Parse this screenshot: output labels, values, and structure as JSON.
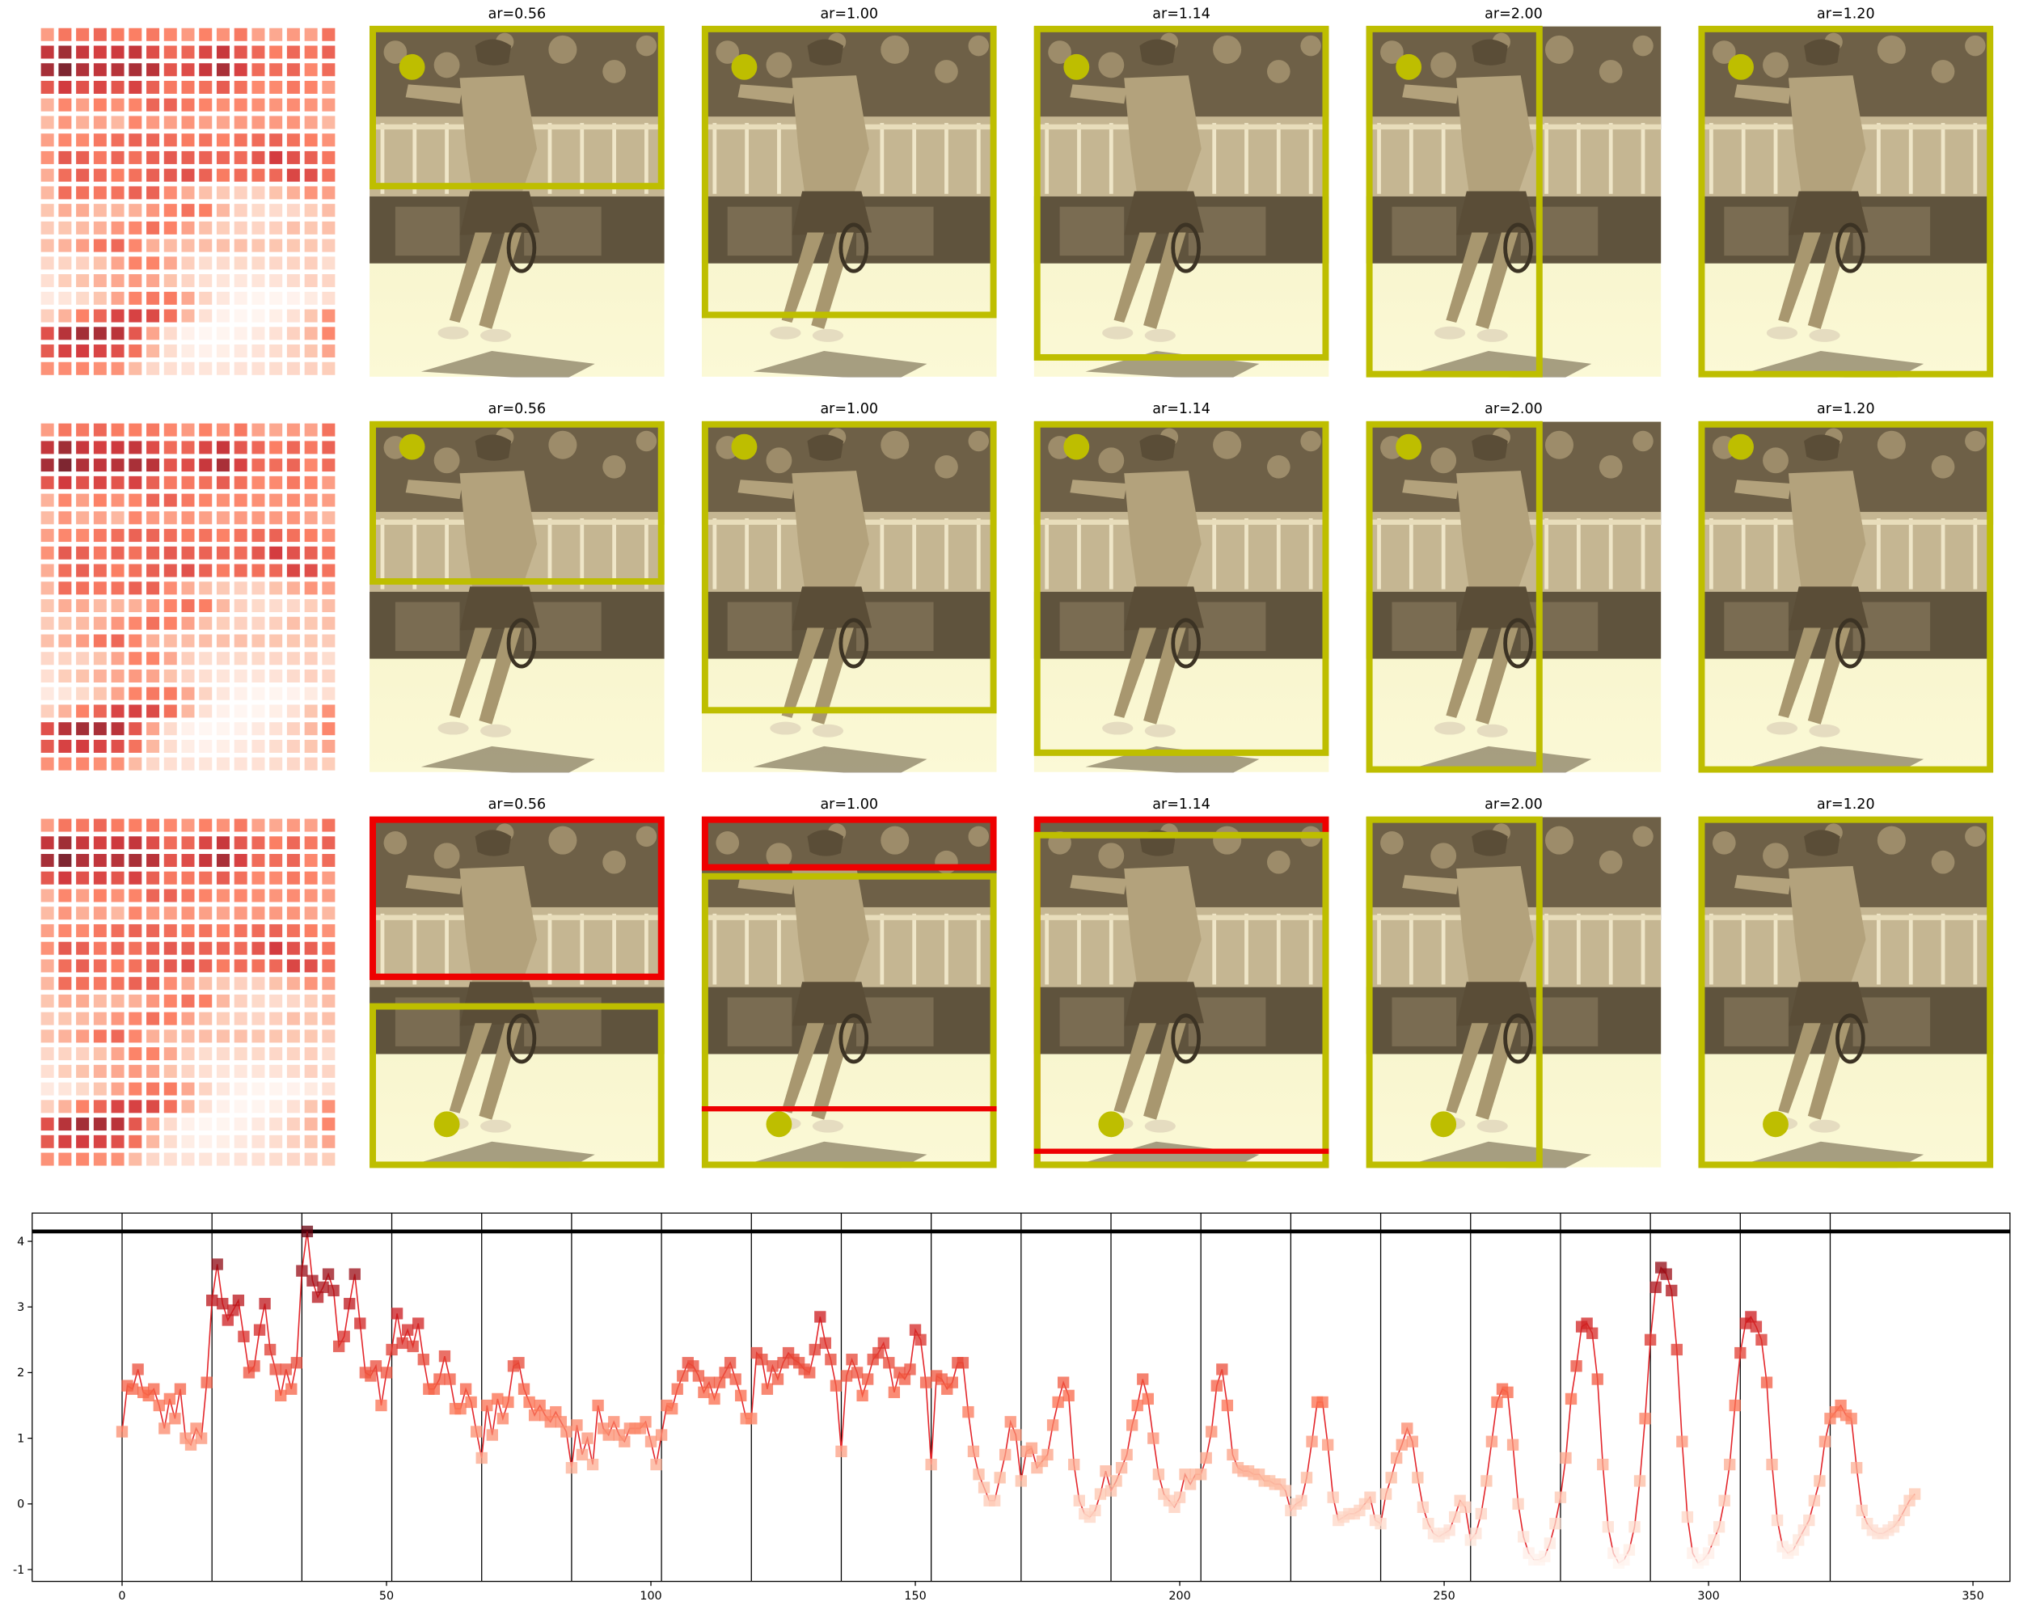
{
  "panel_titles": [
    "ar=0.56",
    "ar=1.00",
    "ar=1.14",
    "ar=2.00",
    "ar=1.20"
  ],
  "chart_data": {
    "type": "line",
    "marker": "square",
    "colormap": "Reds",
    "color": "#e3262b",
    "x": [
      0,
      1,
      2,
      3,
      4,
      5,
      6,
      7,
      8,
      9,
      10,
      11,
      12,
      13,
      14,
      15,
      16,
      17,
      18,
      19,
      20,
      21,
      22,
      23,
      24,
      25,
      26,
      27,
      28,
      29,
      30,
      31,
      32,
      33,
      34,
      35,
      36,
      37,
      38,
      39,
      40,
      41,
      42,
      43,
      44,
      45,
      46,
      47,
      48,
      49,
      50,
      51,
      52,
      53,
      54,
      55,
      56,
      57,
      58,
      59,
      60,
      61,
      62,
      63,
      64,
      65,
      66,
      67,
      68,
      69,
      70,
      71,
      72,
      73,
      74,
      75,
      76,
      77,
      78,
      79,
      80,
      81,
      82,
      83,
      84,
      85,
      86,
      87,
      88,
      89,
      90,
      91,
      92,
      93,
      94,
      95,
      96,
      97,
      98,
      99,
      100,
      101,
      102,
      103,
      104,
      105,
      106,
      107,
      108,
      109,
      110,
      111,
      112,
      113,
      114,
      115,
      116,
      117,
      118,
      119,
      120,
      121,
      122,
      123,
      124,
      125,
      126,
      127,
      128,
      129,
      130,
      131,
      132,
      133,
      134,
      135,
      136,
      137,
      138,
      139,
      140,
      141,
      142,
      143,
      144,
      145,
      146,
      147,
      148,
      149,
      150,
      151,
      152,
      153,
      154,
      155,
      156,
      157,
      158,
      159,
      160,
      161,
      162,
      163,
      164,
      165,
      166,
      167,
      168,
      169,
      170,
      171,
      172,
      173,
      174,
      175,
      176,
      177,
      178,
      179,
      180,
      181,
      182,
      183,
      184,
      185,
      186,
      187,
      188,
      189,
      190,
      191,
      192,
      193,
      194,
      195,
      196,
      197,
      198,
      199,
      200,
      201,
      202,
      203,
      204,
      205,
      206,
      207,
      208,
      209,
      210,
      211,
      212,
      213,
      214,
      215,
      216,
      217,
      218,
      219,
      220,
      221,
      222,
      223,
      224,
      225,
      226,
      227,
      228,
      229,
      230,
      231,
      232,
      233,
      234,
      235,
      236,
      237,
      238,
      239,
      240,
      241,
      242,
      243,
      244,
      245,
      246,
      247,
      248,
      249,
      250,
      251,
      252,
      253,
      254,
      255,
      256,
      257,
      258,
      259,
      260,
      261,
      262,
      263,
      264,
      265,
      266,
      267,
      268,
      269,
      270,
      271,
      272,
      273,
      274,
      275,
      276,
      277,
      278,
      279,
      280,
      281,
      282,
      283,
      284,
      285,
      286,
      287,
      288,
      289,
      290,
      291,
      292,
      293,
      294,
      295,
      296,
      297,
      298,
      299,
      300,
      301,
      302,
      303,
      304,
      305,
      306,
      307,
      308,
      309,
      310,
      311,
      312,
      313,
      314,
      315,
      316,
      317,
      318,
      319,
      320,
      321,
      322,
      323,
      324,
      325,
      326,
      327,
      328,
      329,
      330,
      331,
      332,
      333,
      334,
      335,
      336,
      337,
      338,
      339
    ],
    "values": [
      1.1,
      1.8,
      1.75,
      2.05,
      1.7,
      1.65,
      1.75,
      1.5,
      1.15,
      1.6,
      1.3,
      1.75,
      1.0,
      0.9,
      1.15,
      1.0,
      1.85,
      3.1,
      3.65,
      3.05,
      2.8,
      2.95,
      3.1,
      2.55,
      2.0,
      2.1,
      2.65,
      3.05,
      2.35,
      2.05,
      1.65,
      2.05,
      1.75,
      2.15,
      3.55,
      4.15,
      3.4,
      3.15,
      3.3,
      3.5,
      3.25,
      2.4,
      2.55,
      3.05,
      3.5,
      2.75,
      2.0,
      1.95,
      2.1,
      1.5,
      2.0,
      2.35,
      2.9,
      2.45,
      2.65,
      2.4,
      2.75,
      2.2,
      1.75,
      1.75,
      1.9,
      2.25,
      1.9,
      1.45,
      1.45,
      1.75,
      1.55,
      1.1,
      0.7,
      1.5,
      1.05,
      1.6,
      1.3,
      1.55,
      2.1,
      2.15,
      1.75,
      1.55,
      1.35,
      1.5,
      1.35,
      1.25,
      1.4,
      1.25,
      1.1,
      0.55,
      1.2,
      0.75,
      1.0,
      0.6,
      1.5,
      1.15,
      1.05,
      1.25,
      1.05,
      0.95,
      1.15,
      1.15,
      1.15,
      1.25,
      0.95,
      0.6,
      1.05,
      1.5,
      1.45,
      1.75,
      1.95,
      2.15,
      2.1,
      1.95,
      1.7,
      1.85,
      1.6,
      1.85,
      2.0,
      2.15,
      1.9,
      1.65,
      1.3,
      1.3,
      2.3,
      2.2,
      1.75,
      2.1,
      1.9,
      2.15,
      2.3,
      2.2,
      2.15,
      2.05,
      2.0,
      2.35,
      2.85,
      2.45,
      2.2,
      1.8,
      0.8,
      1.95,
      2.2,
      2.0,
      1.65,
      1.9,
      2.2,
      2.3,
      2.45,
      2.15,
      1.7,
      2.0,
      1.9,
      2.05,
      2.65,
      2.5,
      1.85,
      0.6,
      1.95,
      1.9,
      1.75,
      1.85,
      2.15,
      2.15,
      1.4,
      0.8,
      0.45,
      0.25,
      0.05,
      0.05,
      0.4,
      0.75,
      1.25,
      1.05,
      0.35,
      0.8,
      0.85,
      0.55,
      0.65,
      0.75,
      1.2,
      1.55,
      1.85,
      1.65,
      0.6,
      0.05,
      -0.15,
      -0.2,
      -0.1,
      0.15,
      0.5,
      0.2,
      0.35,
      0.55,
      0.75,
      1.2,
      1.5,
      1.9,
      1.6,
      1.0,
      0.45,
      0.15,
      0.05,
      -0.05,
      0.1,
      0.45,
      0.3,
      0.45,
      0.45,
      0.7,
      1.1,
      1.8,
      2.05,
      1.5,
      0.75,
      0.55,
      0.5,
      0.5,
      0.45,
      0.45,
      0.35,
      0.35,
      0.3,
      0.3,
      0.2,
      -0.1,
      0.0,
      0.05,
      0.4,
      0.95,
      1.55,
      1.55,
      0.9,
      0.1,
      -0.25,
      -0.2,
      -0.15,
      -0.15,
      -0.1,
      0.0,
      0.1,
      -0.25,
      -0.3,
      0.15,
      0.4,
      0.7,
      0.9,
      1.15,
      0.95,
      0.4,
      -0.05,
      -0.3,
      -0.45,
      -0.5,
      -0.45,
      -0.4,
      -0.2,
      0.05,
      -0.05,
      -0.55,
      -0.45,
      -0.15,
      0.35,
      0.95,
      1.55,
      1.75,
      1.7,
      0.9,
      0.0,
      -0.5,
      -0.75,
      -0.85,
      -0.85,
      -0.8,
      -0.6,
      -0.3,
      0.1,
      0.7,
      1.6,
      2.1,
      2.7,
      2.75,
      2.6,
      1.9,
      0.6,
      -0.35,
      -0.75,
      -0.9,
      -0.85,
      -0.7,
      -0.35,
      0.35,
      1.3,
      2.5,
      3.3,
      3.6,
      3.5,
      3.25,
      2.35,
      0.95,
      -0.2,
      -0.75,
      -0.9,
      -0.85,
      -0.75,
      -0.55,
      -0.35,
      0.05,
      0.6,
      1.5,
      2.3,
      2.75,
      2.85,
      2.7,
      2.5,
      1.85,
      0.6,
      -0.25,
      -0.65,
      -0.75,
      -0.7,
      -0.55,
      -0.4,
      -0.25,
      0.05,
      0.35,
      0.95,
      1.3,
      1.4,
      1.5,
      1.35,
      1.3,
      0.55,
      -0.1,
      -0.3,
      -0.4,
      -0.45,
      -0.45,
      -0.4,
      -0.35,
      -0.25,
      -0.1,
      0.05,
      0.15
    ],
    "vlines": [
      0,
      17,
      34,
      51,
      68,
      85,
      102,
      119,
      136,
      153,
      170,
      187,
      204,
      221,
      238,
      255,
      272,
      289,
      306,
      323
    ],
    "hline": 4.15,
    "xlim": [
      -17,
      357
    ],
    "ylim": [
      -1.18,
      4.43
    ],
    "xticks": [
      0,
      50,
      100,
      150,
      200,
      250,
      300,
      350
    ],
    "yticks": [
      -1,
      0,
      1,
      2,
      3,
      4
    ]
  }
}
